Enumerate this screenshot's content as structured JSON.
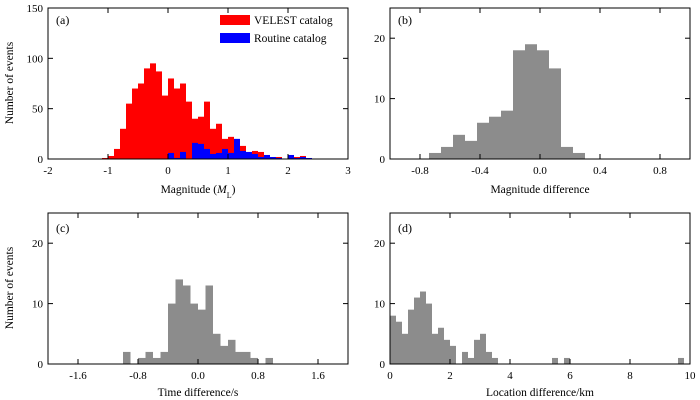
{
  "figure": {
    "colors": {
      "velest": "#ff0000",
      "routine": "#0000ff",
      "hist": "#8c8c8c",
      "axis": "#000000"
    }
  },
  "chart_data": [
    {
      "id": "a",
      "type": "bar",
      "panel_label": "(a)",
      "xlabel": "Magnitude (",
      "xlabel_symbol": "M",
      "xlabel_sub": "L",
      "xlabel_close": ")",
      "ylabel": "Number of events",
      "xlim": [
        -2,
        3
      ],
      "ylim": [
        0,
        150
      ],
      "xticks": [
        -2,
        -1,
        0,
        1,
        2,
        3
      ],
      "yticks": [
        0,
        50,
        100,
        150
      ],
      "xtick_labels": [
        "-2",
        "-1",
        "0",
        "1",
        "2",
        "3"
      ],
      "ytick_labels": [
        "0",
        "50",
        "100",
        "150"
      ],
      "legend_position": "top-right",
      "bin_start": -1.2,
      "bin_width": 0.1,
      "series": [
        {
          "name": "VELEST catalog",
          "color_key": "velest",
          "values": [
            0,
            1,
            3,
            10,
            30,
            55,
            70,
            75,
            90,
            95,
            87,
            63,
            80,
            70,
            75,
            57,
            40,
            42,
            57,
            30,
            35,
            20,
            22,
            10,
            13,
            6,
            8,
            7,
            2,
            1,
            2,
            0,
            2,
            2,
            3,
            0,
            0
          ]
        },
        {
          "name": "Routine catalog",
          "color_key": "routine",
          "values": [
            0,
            0,
            0,
            0,
            0,
            0,
            0,
            0,
            0,
            0,
            0,
            0,
            6,
            1,
            7,
            0,
            16,
            15,
            10,
            5,
            6,
            10,
            6,
            20,
            8,
            7,
            5,
            2,
            4,
            2,
            1,
            0,
            4,
            1,
            2,
            1,
            0
          ]
        }
      ]
    },
    {
      "id": "b",
      "type": "bar",
      "panel_label": "(b)",
      "xlabel": "Magnitude difference",
      "ylabel": "",
      "xlim": [
        -1,
        1
      ],
      "ylim": [
        0,
        25
      ],
      "xticks": [
        -0.8,
        -0.4,
        0,
        0.4,
        0.8
      ],
      "yticks": [
        0,
        10,
        20
      ],
      "xtick_labels": [
        "-0.8",
        "-0.4",
        "0.0",
        "0.4",
        "0.8"
      ],
      "ytick_labels": [
        "0",
        "10",
        "20"
      ],
      "bin_start": -0.74,
      "bin_width": 0.08,
      "series": [
        {
          "name": "Magnitude difference",
          "color_key": "hist",
          "values": [
            1,
            2,
            4,
            3,
            6,
            7,
            8,
            18,
            19,
            18,
            15,
            2,
            1
          ]
        }
      ]
    },
    {
      "id": "c",
      "type": "bar",
      "panel_label": "(c)",
      "xlabel": "Time difference/s",
      "ylabel": "Number of events",
      "xlim": [
        -2.0,
        2.0
      ],
      "ylim": [
        0,
        25
      ],
      "xticks": [
        -1.6,
        -0.8,
        0,
        0.8,
        1.6
      ],
      "yticks": [
        0,
        10,
        20
      ],
      "xtick_labels": [
        "-1.6",
        "-0.8",
        "0.0",
        "0.8",
        "1.6"
      ],
      "ytick_labels": [
        "0",
        "10",
        "20"
      ],
      "bin_start": -1.0,
      "bin_width": 0.1,
      "series": [
        {
          "name": "Time difference",
          "color_key": "hist",
          "values": [
            2,
            0,
            1,
            2,
            1,
            2,
            10,
            14,
            13,
            10,
            9,
            13,
            5,
            3,
            4,
            2,
            2,
            1,
            0,
            1
          ]
        }
      ]
    },
    {
      "id": "d",
      "type": "bar",
      "panel_label": "(d)",
      "xlabel": "Location difference/km",
      "ylabel": "",
      "xlim": [
        0,
        10
      ],
      "ylim": [
        0,
        25
      ],
      "xticks": [
        0,
        2,
        4,
        6,
        8,
        10
      ],
      "yticks": [
        0,
        10,
        20
      ],
      "xtick_labels": [
        "0",
        "2",
        "4",
        "6",
        "8",
        "10"
      ],
      "ytick_labels": [
        "0",
        "10",
        "20"
      ],
      "bin_start": 0,
      "bin_width": 0.2,
      "series": [
        {
          "name": "Location difference",
          "color_key": "hist",
          "values": [
            8,
            7,
            5,
            9,
            11,
            12,
            10,
            5,
            6,
            4,
            3,
            0,
            2,
            1,
            4,
            5,
            2,
            1,
            0,
            0,
            0,
            0,
            0,
            0,
            0,
            0,
            0,
            1,
            0,
            1,
            0,
            0,
            0,
            0,
            0,
            0,
            0,
            0,
            0,
            0,
            0,
            0,
            0,
            0,
            0,
            0,
            0,
            0,
            1,
            0
          ]
        }
      ]
    }
  ]
}
